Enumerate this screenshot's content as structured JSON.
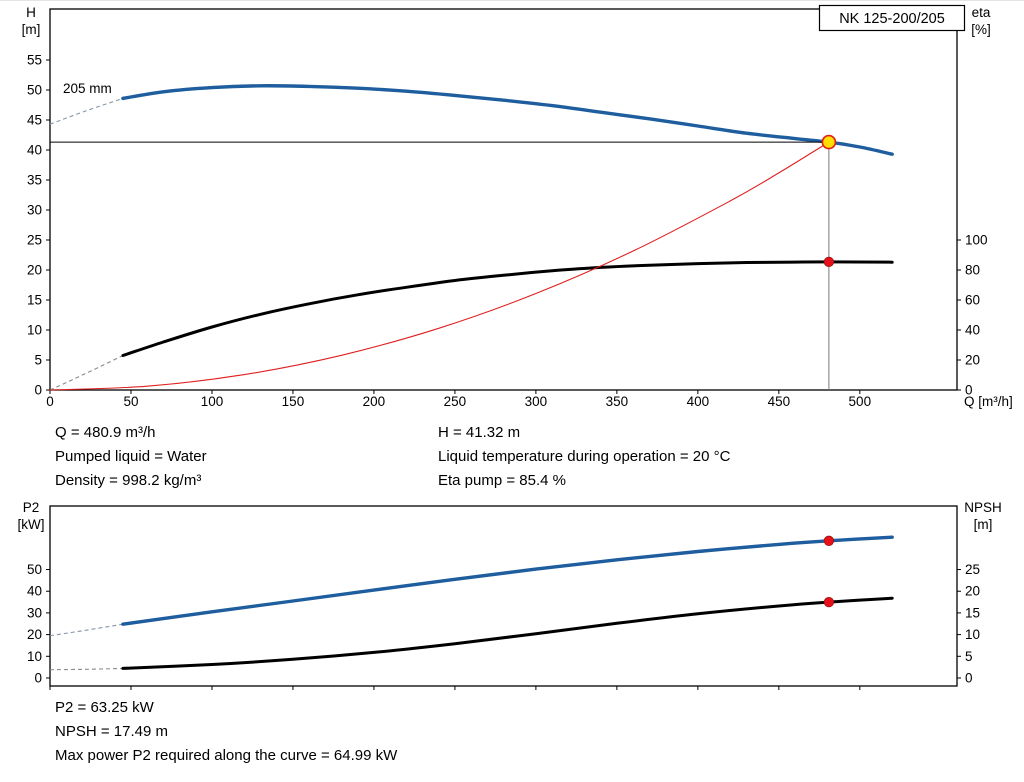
{
  "report": {
    "info_top_left": [
      "Q = 480.9 m³/h",
      "Pumped liquid = Water",
      "Density = 998.2 kg/m³"
    ],
    "info_top_right": [
      "H = 41.32 m",
      "Liquid temperature during operation = 20 °C",
      "Eta pump = 85.4 %"
    ],
    "info_bottom": [
      "P2 = 63.25 kW",
      "NPSH = 17.49 m",
      "Max power P2 required along the curve = 64.99 kW"
    ]
  },
  "chart_data": [
    {
      "id": "qh",
      "type": "line",
      "title_box": "NK 125-200/205",
      "x": {
        "label": "Q [m³/h]",
        "min": 0,
        "max": 560,
        "ticks": [
          0,
          50,
          100,
          150,
          200,
          250,
          300,
          350,
          400,
          450,
          500
        ],
        "show_labels": true
      },
      "y_left": {
        "label_lines": [
          "H",
          "[m]"
        ],
        "min": 0,
        "max": 63.5,
        "ticks": [
          0,
          5,
          10,
          15,
          20,
          25,
          30,
          35,
          40,
          45,
          50,
          55
        ]
      },
      "y_right": {
        "label_lines": [
          "eta",
          "[%]"
        ],
        "min": 0,
        "max": 254,
        "ticks": [
          0,
          20,
          40,
          60,
          80,
          100
        ]
      },
      "series": [
        {
          "name": "head-curve-205mm",
          "axis": "left",
          "color": "#1e5d9e",
          "width": 3.4,
          "label": {
            "text": "205 mm",
            "q": 8,
            "v": 49.5
          },
          "dash_color": "#8896a8",
          "dash_lead": [
            [
              0,
              44.3
            ],
            [
              22,
              46.5
            ],
            [
              45,
              48.6
            ]
          ],
          "points": [
            [
              45,
              48.6
            ],
            [
              70,
              49.7
            ],
            [
              100,
              50.4
            ],
            [
              130,
              50.7
            ],
            [
              160,
              50.6
            ],
            [
              190,
              50.3
            ],
            [
              220,
              49.8
            ],
            [
              250,
              49.1
            ],
            [
              280,
              48.3
            ],
            [
              310,
              47.4
            ],
            [
              340,
              46.3
            ],
            [
              370,
              45.2
            ],
            [
              400,
              44.0
            ],
            [
              430,
              42.8
            ],
            [
              460,
              41.9
            ],
            [
              480.9,
              41.32
            ],
            [
              500,
              40.5
            ],
            [
              520,
              39.3
            ]
          ]
        },
        {
          "name": "efficiency-curve",
          "axis": "right",
          "color": "#000000",
          "width": 3.0,
          "dash_color": "#8a8a8a",
          "dash_lead": [
            [
              0,
              0
            ],
            [
              22,
              11
            ],
            [
              45,
              23
            ]
          ],
          "points": [
            [
              45,
              23
            ],
            [
              70,
              32
            ],
            [
              100,
              42
            ],
            [
              130,
              50.5
            ],
            [
              160,
              57.5
            ],
            [
              190,
              63.5
            ],
            [
              220,
              68.5
            ],
            [
              250,
              73
            ],
            [
              280,
              76.5
            ],
            [
              310,
              79.5
            ],
            [
              340,
              81.7
            ],
            [
              370,
              83.2
            ],
            [
              400,
              84.3
            ],
            [
              430,
              85.0
            ],
            [
              460,
              85.3
            ],
            [
              480.9,
              85.4
            ],
            [
              520,
              85.2
            ]
          ]
        },
        {
          "name": "system-curve",
          "axis": "left",
          "color": "#e02020",
          "width": 1.1,
          "points": [
            [
              0,
              0
            ],
            [
              60,
              0.64
            ],
            [
              120,
              2.57
            ],
            [
              180,
              5.79
            ],
            [
              240,
              10.29
            ],
            [
              300,
              16.08
            ],
            [
              360,
              23.16
            ],
            [
              420,
              31.52
            ],
            [
              450,
              36.18
            ],
            [
              480.9,
              41.32
            ]
          ]
        }
      ],
      "crosshair": {
        "q": 480.9,
        "v": 41.32,
        "h_color": "#000000",
        "v_color": "#787878"
      },
      "markers": [
        {
          "name": "duty-point-marker",
          "axis": "left",
          "q": 480.9,
          "v": 41.32,
          "r": 6.5,
          "fill": "#ffdf00",
          "stroke": "#e02020",
          "stroke_width": 1.7
        },
        {
          "name": "eta-duty-marker",
          "axis": "right",
          "q": 480.9,
          "v": 85.4,
          "r": 4.8,
          "fill": "#e81018",
          "stroke": "#8f0f0f",
          "stroke_width": 0.7
        }
      ]
    },
    {
      "id": "p2npsh",
      "type": "line",
      "x": {
        "label": "",
        "min": 0,
        "max": 560,
        "ticks": [
          0,
          50,
          100,
          150,
          200,
          250,
          300,
          350,
          400,
          450,
          500
        ],
        "show_labels": false
      },
      "y_left": {
        "label_lines": [
          "P2",
          "[kW]"
        ],
        "min": -3.7,
        "max": 79.3,
        "ticks": [
          0,
          10,
          20,
          30,
          40,
          50
        ]
      },
      "y_right": {
        "label_lines": [
          "NPSH",
          "[m]"
        ],
        "min": -1.85,
        "max": 39.65,
        "ticks": [
          0,
          5,
          10,
          15,
          20,
          25
        ]
      },
      "series": [
        {
          "name": "p2-curve",
          "axis": "left",
          "color": "#1e5d9e",
          "width": 3.4,
          "dash_color": "#8896a8",
          "dash_lead": [
            [
              0,
              19.5
            ],
            [
              22,
              22.0
            ],
            [
              45,
              24.8
            ]
          ],
          "points": [
            [
              45,
              24.8
            ],
            [
              100,
              30.5
            ],
            [
              150,
              35.5
            ],
            [
              200,
              40.5
            ],
            [
              250,
              45.5
            ],
            [
              300,
              50.2
            ],
            [
              350,
              54.5
            ],
            [
              400,
              58.3
            ],
            [
              450,
              61.6
            ],
            [
              480.9,
              63.25
            ],
            [
              520,
              64.9
            ]
          ]
        },
        {
          "name": "npsh-curve",
          "axis": "right",
          "color": "#000000",
          "width": 3.0,
          "dash_color": "#8a8a8a",
          "dash_lead": [
            [
              0,
              1.9
            ],
            [
              22,
              2.0
            ],
            [
              45,
              2.2
            ]
          ],
          "points": [
            [
              45,
              2.2
            ],
            [
              100,
              3.1
            ],
            [
              150,
              4.3
            ],
            [
              200,
              5.9
            ],
            [
              250,
              7.9
            ],
            [
              300,
              10.2
            ],
            [
              350,
              12.6
            ],
            [
              400,
              14.8
            ],
            [
              450,
              16.6
            ],
            [
              480.9,
              17.49
            ],
            [
              520,
              18.4
            ]
          ]
        }
      ],
      "markers": [
        {
          "name": "p2-duty-marker",
          "axis": "left",
          "q": 480.9,
          "v": 63.25,
          "r": 4.8,
          "fill": "#e81018",
          "stroke": "#8f0f0f",
          "stroke_width": 0.7
        },
        {
          "name": "npsh-duty-marker",
          "axis": "right",
          "q": 480.9,
          "v": 17.49,
          "r": 4.8,
          "fill": "#e81018",
          "stroke": "#8f0f0f",
          "stroke_width": 0.7
        }
      ]
    }
  ]
}
